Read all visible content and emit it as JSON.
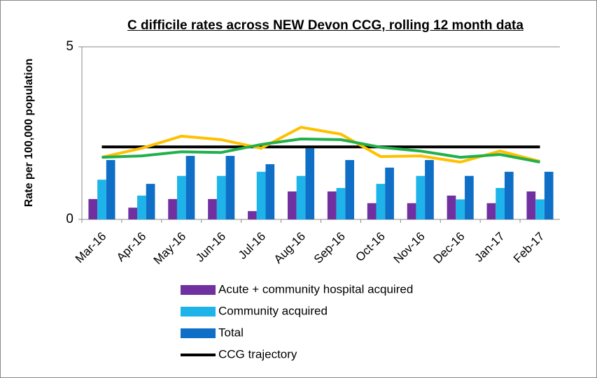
{
  "chart_data": {
    "type": "bar",
    "title": "C difficile rates across NEW Devon CCG, rolling 12 month data",
    "y_label": "Rate per 100,000 population",
    "categories": [
      "Mar-16",
      "Apr-16",
      "May-16",
      "Jun-16",
      "Jul-16",
      "Aug-16",
      "Sep-16",
      "Oct-16",
      "Nov-16",
      "Dec-16",
      "Jan-17",
      "Feb-17"
    ],
    "ylim": [
      0,
      5
    ],
    "yticks": [
      0,
      5
    ],
    "grid": true,
    "series": [
      {
        "name": "Acute + community hospital acquired",
        "type": "bar",
        "color": "#7030a0",
        "values": [
          0.59,
          0.34,
          0.59,
          0.59,
          0.24,
          0.81,
          0.81,
          0.47,
          0.47,
          0.69,
          0.47,
          0.81
        ]
      },
      {
        "name": "Community acquired",
        "type": "bar",
        "color": "#1eb4ea",
        "values": [
          1.15,
          0.69,
          1.26,
          1.26,
          1.38,
          1.26,
          0.91,
          1.03,
          1.26,
          0.58,
          0.91,
          0.58
        ]
      },
      {
        "name": "Total",
        "type": "bar",
        "color": "#0f6fc6",
        "values": [
          1.72,
          1.03,
          1.84,
          1.84,
          1.6,
          2.06,
          1.72,
          1.5,
          1.72,
          1.26,
          1.38,
          1.38
        ]
      },
      {
        "name": "CCG trajectory",
        "type": "line",
        "color": "#000000",
        "values": [
          2.1,
          2.1,
          2.1,
          2.1,
          2.1,
          2.1,
          2.1,
          2.1,
          2.1,
          2.1,
          2.1,
          2.1
        ]
      },
      {
        "type": "line",
        "color": "#ffc000",
        "values": [
          1.8,
          2.06,
          2.41,
          2.31,
          2.06,
          2.67,
          2.47,
          1.82,
          1.84,
          1.66,
          1.98,
          1.68
        ]
      },
      {
        "type": "line",
        "color": "#22b04b",
        "values": [
          1.8,
          1.84,
          1.96,
          1.94,
          2.17,
          2.33,
          2.31,
          2.09,
          1.98,
          1.8,
          1.88,
          1.66
        ]
      }
    ]
  }
}
